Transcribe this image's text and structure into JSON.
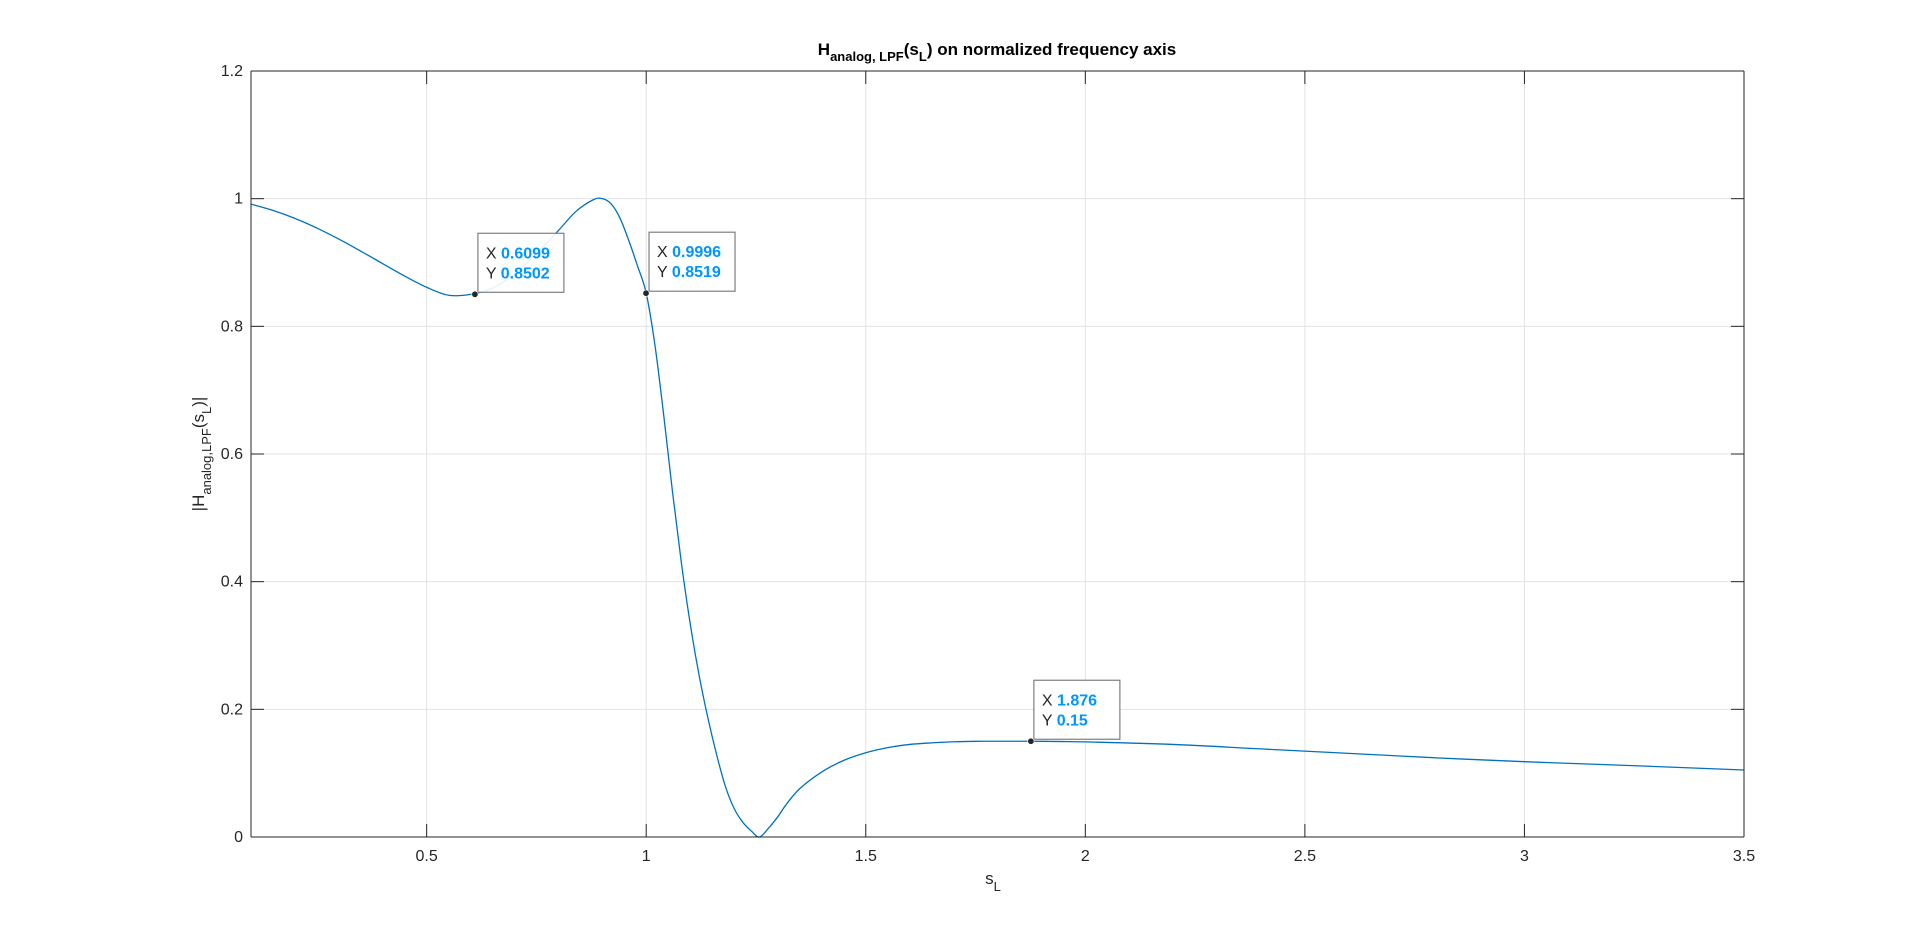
{
  "chart_data": {
    "type": "line",
    "title": {
      "main": "H",
      "subscript": "analog, LPF",
      "arg_open": "(s",
      "arg_sub": "L",
      "rest": ") on normalized frequency axis"
    },
    "xlabel": {
      "main": "s",
      "subscript": "L"
    },
    "ylabel": {
      "open": "|H",
      "subscript": "analog,LPF",
      "arg_open": "(s",
      "arg_sub": "L",
      "close": ")|"
    },
    "xlim": [
      0.1,
      3.5
    ],
    "ylim": [
      0,
      1.2
    ],
    "xticks": [
      0.5,
      1,
      1.5,
      2,
      2.5,
      3,
      3.5
    ],
    "xtick_labels": [
      "0.5",
      "1",
      "1.5",
      "2",
      "2.5",
      "3",
      "3.5"
    ],
    "yticks": [
      0,
      0.2,
      0.4,
      0.6,
      0.8,
      1,
      1.2
    ],
    "ytick_labels": [
      "0",
      "0.2",
      "0.4",
      "0.6",
      "0.8",
      "1",
      "1.2"
    ],
    "grid": true,
    "line_color": "#0072BD",
    "series": [
      {
        "x": [
          0.1,
          0.15,
          0.2,
          0.25,
          0.3,
          0.35,
          0.4,
          0.45,
          0.5,
          0.55,
          0.6,
          0.65,
          0.7,
          0.75,
          0.8,
          0.84,
          0.88,
          0.9,
          0.92,
          0.94,
          0.96,
          0.98,
          1.0,
          1.02,
          1.04,
          1.06,
          1.08,
          1.1,
          1.12,
          1.14,
          1.16,
          1.18,
          1.2,
          1.22,
          1.24,
          1.258,
          1.28,
          1.3,
          1.32,
          1.35,
          1.4,
          1.45,
          1.5,
          1.55,
          1.6,
          1.65,
          1.7,
          1.75,
          1.8,
          1.876,
          1.95,
          2.0,
          2.2,
          2.4,
          2.6,
          2.8,
          3.0,
          3.2,
          3.5
        ],
        "y": [
          0.9915,
          0.9817,
          0.9691,
          0.954,
          0.9367,
          0.9178,
          0.8982,
          0.8787,
          0.8612,
          0.8487,
          0.85,
          0.86,
          0.882,
          0.914,
          0.95,
          0.98,
          0.9985,
          1.0,
          0.992,
          0.97,
          0.935,
          0.895,
          0.8519,
          0.77,
          0.66,
          0.54,
          0.43,
          0.335,
          0.255,
          0.188,
          0.13,
          0.08,
          0.045,
          0.023,
          0.009,
          0.0,
          0.015,
          0.032,
          0.052,
          0.076,
          0.102,
          0.12,
          0.132,
          0.14,
          0.145,
          0.1475,
          0.1492,
          0.1499,
          0.15,
          0.15,
          0.1495,
          0.149,
          0.145,
          0.138,
          0.131,
          0.124,
          0.118,
          0.113,
          0.105
        ]
      }
    ],
    "datatips": [
      {
        "x": 0.6099,
        "y": 0.8502,
        "x_label": "X",
        "y_label": "Y",
        "x_text": "0.6099",
        "y_text": "0.8502"
      },
      {
        "x": 0.9996,
        "y": 0.8519,
        "x_label": "X",
        "y_label": "Y",
        "x_text": "0.9996",
        "y_text": "0.8519"
      },
      {
        "x": 1.876,
        "y": 0.15,
        "x_label": "X",
        "y_label": "Y",
        "x_text": "1.876",
        "y_text": "0.15"
      }
    ],
    "datatip_value_color": "#0096FF"
  }
}
